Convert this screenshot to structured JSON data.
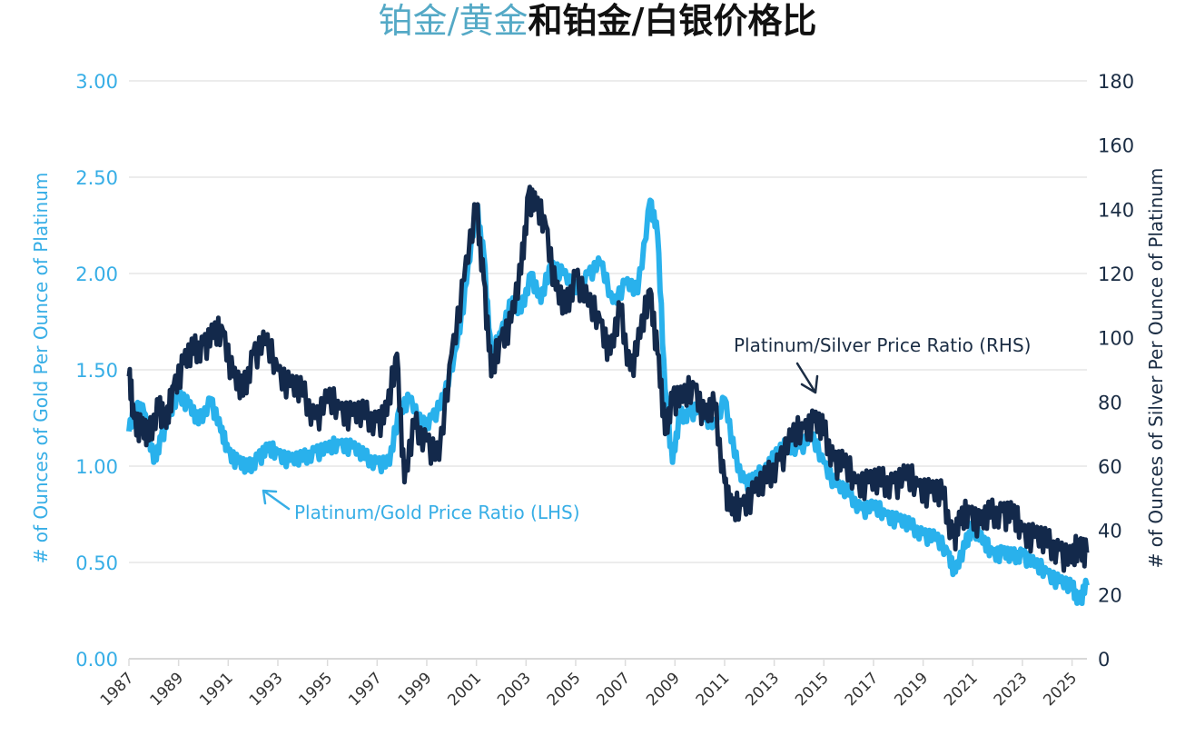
{
  "title": {
    "part1": "铂金/黄金",
    "part2": "和铂金/白银价格比"
  },
  "chart_data": {
    "type": "line",
    "title": "铂金/黄金和铂金/白银价格比",
    "xlabel": "",
    "ylabel_left": "# of Ounces of Gold Per Ounce of Platinum",
    "ylabel_right": "# of Ounces of Silver Per Ounce of Platinum",
    "xlim": [
      1987,
      2025.6
    ],
    "ylim_left": [
      0,
      3.0
    ],
    "ylim_right": [
      0,
      180
    ],
    "grid": true,
    "x_ticks": [
      "1987",
      "1989",
      "1991",
      "1993",
      "1995",
      "1997",
      "1999",
      "2001",
      "2003",
      "2005",
      "2007",
      "2009",
      "2011",
      "2013",
      "2015",
      "2017",
      "2019",
      "2021",
      "2023",
      "2025"
    ],
    "y_ticks_left": [
      "0.00",
      "0.50",
      "1.00",
      "1.50",
      "2.00",
      "2.50",
      "3.00"
    ],
    "y_ticks_right": [
      "0",
      "20",
      "40",
      "60",
      "80",
      "100",
      "120",
      "140",
      "160",
      "180"
    ],
    "colors": {
      "gold_series": "#29b1ec",
      "silver_series": "#13294b",
      "left_axis": "#37aee6",
      "right_axis": "#1b2d44",
      "title_highlight": "#54a9c6"
    },
    "annotations": [
      {
        "text": "Platinum/Gold Price Ratio (LHS)",
        "series": "Platinum/Gold Price Ratio (LHS)",
        "x": 1992.3,
        "y": 1.05,
        "axis": "left"
      },
      {
        "text": "Platinum/Silver Price Ratio (RHS)",
        "series": "Platinum/Silver Price Ratio (RHS)",
        "x": 2014.8,
        "y": 79,
        "axis": "right"
      }
    ],
    "series": [
      {
        "name": "Platinum/Gold Price Ratio (LHS)",
        "axis": "left",
        "x": [
          1987.0,
          1987.3,
          1987.6,
          1988.0,
          1988.3,
          1988.6,
          1989.0,
          1989.4,
          1989.8,
          1990.3,
          1990.7,
          1991.0,
          1991.4,
          1991.8,
          1992.2,
          1992.6,
          1993.0,
          1993.5,
          1994.0,
          1994.5,
          1995.0,
          1995.5,
          1996.0,
          1996.5,
          1997.0,
          1997.5,
          1997.9,
          1998.3,
          1998.8,
          1999.2,
          1999.7,
          2000.2,
          2000.6,
          2001.0,
          2001.3,
          2001.6,
          2002.0,
          2002.4,
          2002.8,
          2003.2,
          2003.6,
          2004.0,
          2004.5,
          2005.0,
          2005.5,
          2006.0,
          2006.5,
          2007.0,
          2007.5,
          2008.0,
          2008.3,
          2008.6,
          2008.9,
          2009.2,
          2009.6,
          2010.0,
          2010.5,
          2011.0,
          2011.4,
          2011.8,
          2012.2,
          2012.6,
          2013.0,
          2013.5,
          2014.0,
          2014.5,
          2015.0,
          2015.5,
          2016.0,
          2016.5,
          2017.0,
          2017.5,
          2018.0,
          2018.5,
          2019.0,
          2019.5,
          2020.0,
          2020.3,
          2020.7,
          2021.0,
          2021.4,
          2021.8,
          2022.2,
          2022.6,
          2023.0,
          2023.5,
          2024.0,
          2024.5,
          2025.0,
          2025.3,
          2025.6
        ],
        "y": [
          1.18,
          1.32,
          1.28,
          1.02,
          1.15,
          1.25,
          1.38,
          1.32,
          1.22,
          1.35,
          1.18,
          1.08,
          1.02,
          0.98,
          1.05,
          1.08,
          1.07,
          1.03,
          1.03,
          1.08,
          1.08,
          1.12,
          1.1,
          1.04,
          1.02,
          1.01,
          1.3,
          1.35,
          1.2,
          1.25,
          1.35,
          1.62,
          1.95,
          2.35,
          2.1,
          1.55,
          1.7,
          1.85,
          1.8,
          2.0,
          1.85,
          2.05,
          2.0,
          1.9,
          2.0,
          2.05,
          1.85,
          1.95,
          1.9,
          2.38,
          2.2,
          1.4,
          1.02,
          1.25,
          1.28,
          1.3,
          1.2,
          1.35,
          1.05,
          0.92,
          0.92,
          0.98,
          1.05,
          1.1,
          1.1,
          1.15,
          1.02,
          0.9,
          0.85,
          0.78,
          0.78,
          0.75,
          0.72,
          0.68,
          0.65,
          0.62,
          0.55,
          0.45,
          0.58,
          0.7,
          0.6,
          0.55,
          0.55,
          0.52,
          0.55,
          0.48,
          0.45,
          0.4,
          0.36,
          0.31,
          0.38
        ]
      },
      {
        "name": "Platinum/Silver Price Ratio (RHS)",
        "axis": "right",
        "x": [
          1987.0,
          1987.2,
          1987.5,
          1987.8,
          1988.2,
          1988.5,
          1988.8,
          1989.2,
          1989.6,
          1990.0,
          1990.4,
          1990.8,
          1991.2,
          1991.6,
          1992.0,
          1992.5,
          1993.0,
          1993.5,
          1994.0,
          1994.5,
          1995.0,
          1995.5,
          1996.0,
          1996.5,
          1997.0,
          1997.4,
          1997.8,
          1998.1,
          1998.5,
          1999.0,
          1999.5,
          2000.0,
          2000.5,
          2001.0,
          2001.3,
          2001.6,
          2002.0,
          2002.4,
          2002.8,
          2003.1,
          2003.4,
          2003.8,
          2004.2,
          2004.6,
          2005.0,
          2005.5,
          2006.0,
          2006.4,
          2006.8,
          2007.2,
          2007.6,
          2008.0,
          2008.3,
          2008.6,
          2008.9,
          2009.3,
          2009.8,
          2010.2,
          2010.6,
          2011.0,
          2011.3,
          2011.7,
          2012.2,
          2012.7,
          2013.2,
          2013.7,
          2014.2,
          2014.6,
          2015.0,
          2015.4,
          2015.8,
          2016.3,
          2016.8,
          2017.3,
          2017.8,
          2018.3,
          2018.8,
          2019.3,
          2019.8,
          2020.2,
          2020.5,
          2020.9,
          2021.3,
          2021.7,
          2022.2,
          2022.6,
          2023.0,
          2023.5,
          2024.0,
          2024.5,
          2025.0,
          2025.3,
          2025.6
        ],
        "y": [
          88,
          75,
          72,
          68,
          80,
          72,
          85,
          92,
          95,
          98,
          100,
          102,
          88,
          82,
          95,
          98,
          90,
          85,
          82,
          75,
          80,
          78,
          76,
          75,
          74,
          76,
          95,
          55,
          72,
          68,
          62,
          95,
          118,
          140,
          118,
          88,
          100,
          105,
          120,
          145,
          140,
          135,
          115,
          108,
          120,
          110,
          105,
          95,
          108,
          90,
          100,
          115,
          95,
          70,
          82,
          80,
          85,
          75,
          78,
          55,
          45,
          48,
          52,
          55,
          62,
          68,
          72,
          74,
          70,
          62,
          60,
          55,
          55,
          54,
          55,
          56,
          54,
          52,
          50,
          38,
          42,
          46,
          42,
          44,
          46,
          44,
          40,
          38,
          35,
          34,
          30,
          36,
          33
        ]
      }
    ]
  }
}
